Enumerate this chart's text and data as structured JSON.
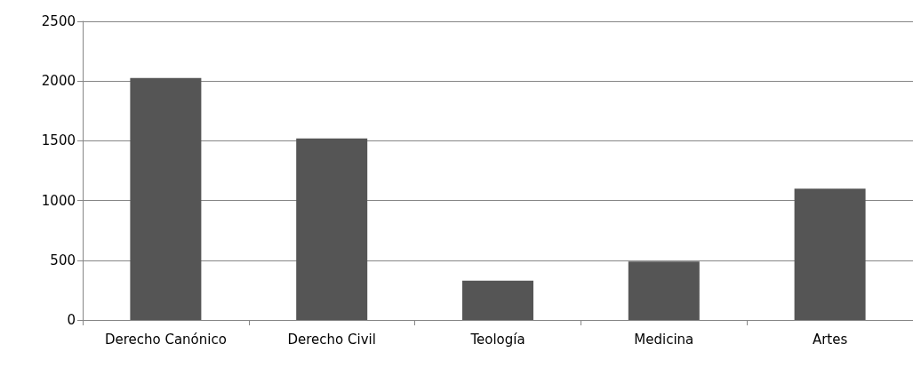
{
  "chart_data": {
    "type": "bar",
    "categories": [
      "Derecho Canónico",
      "Derecho Civil",
      "Teología",
      "Medicina",
      "Artes"
    ],
    "values": [
      2025,
      1520,
      330,
      490,
      1100
    ],
    "color": "#555555",
    "ylim": [
      0,
      2500
    ],
    "yticks": [
      0,
      500,
      1000,
      1500,
      2000,
      2500
    ],
    "grid": "y"
  }
}
